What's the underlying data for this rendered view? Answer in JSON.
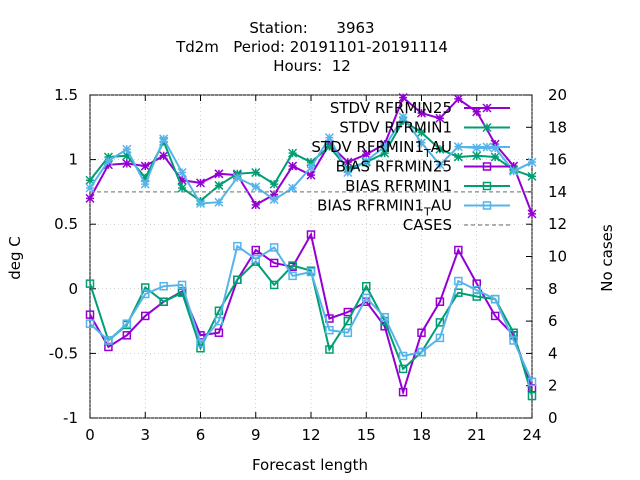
{
  "chart_data": {
    "type": "line",
    "title_lines": [
      "Station:      3963",
      "Td2m   Period: 20191101-20191114",
      "Hours:  12"
    ],
    "xlabel": "Forecast length",
    "ylabel": "deg C",
    "y2label": "No cases",
    "xlim": [
      0,
      24
    ],
    "ylim": [
      -1,
      1.5
    ],
    "y2lim": [
      0,
      20
    ],
    "xticks": [
      "0",
      "3",
      "6",
      "9",
      "12",
      "15",
      "18",
      "21",
      "24"
    ],
    "yticks": [
      "-1",
      "-0.5",
      "0",
      "0.5",
      "1",
      "1.5"
    ],
    "y2ticks": [
      "0",
      "2",
      "4",
      "6",
      "8",
      "10",
      "12",
      "14",
      "16",
      "18",
      "20"
    ],
    "legend_position": "top-right",
    "x": [
      0,
      1,
      2,
      3,
      4,
      5,
      6,
      7,
      8,
      9,
      10,
      11,
      12,
      13,
      14,
      15,
      16,
      17,
      18,
      19,
      20,
      21,
      22,
      23,
      24
    ],
    "series": [
      {
        "name": "STDV RFRMIN25",
        "color": "#9400d3",
        "marker": "star",
        "values": [
          0.7,
          0.96,
          0.97,
          0.95,
          1.03,
          0.84,
          0.82,
          0.89,
          0.88,
          0.65,
          0.73,
          0.95,
          0.88,
          1.12,
          0.98,
          1.04,
          1.12,
          1.48,
          1.36,
          1.32,
          1.47,
          1.37,
          1.12,
          0.95,
          0.58
        ]
      },
      {
        "name": "STDV RFRMIN1",
        "color": "#009e73",
        "marker": "star",
        "values": [
          0.84,
          1.02,
          1.03,
          0.86,
          1.14,
          0.78,
          0.68,
          0.8,
          0.89,
          0.9,
          0.81,
          1.05,
          0.98,
          1.1,
          0.93,
          0.98,
          1.05,
          1.3,
          1.21,
          1.08,
          1.02,
          1.03,
          1.02,
          0.92,
          0.87
        ]
      },
      {
        "name": "STDV RFRMIN1_TAU",
        "color": "#56b4e9",
        "marker": "star",
        "values": [
          0.78,
          0.99,
          1.08,
          0.81,
          1.16,
          0.9,
          0.66,
          0.67,
          0.86,
          0.79,
          0.69,
          0.78,
          0.94,
          1.17,
          0.9,
          0.99,
          1.1,
          1.33,
          1.13,
          0.96,
          1.1,
          1.09,
          1.09,
          0.91,
          0.98
        ]
      },
      {
        "name": "BIAS RFRMIN25",
        "color": "#9400d3",
        "marker": "square",
        "values": [
          -0.2,
          -0.45,
          -0.36,
          -0.21,
          -0.1,
          -0.02,
          -0.36,
          -0.34,
          0.07,
          0.3,
          0.2,
          0.17,
          0.42,
          -0.23,
          -0.18,
          -0.1,
          -0.29,
          -0.8,
          -0.34,
          -0.1,
          0.3,
          0.04,
          -0.21,
          -0.36,
          -0.77
        ]
      },
      {
        "name": "BIAS RFRMIN1",
        "color": "#009e73",
        "marker": "square",
        "values": [
          0.04,
          -0.4,
          -0.28,
          0.01,
          -0.1,
          -0.03,
          -0.46,
          -0.17,
          0.07,
          0.21,
          0.03,
          0.18,
          0.14,
          -0.47,
          -0.25,
          0.02,
          -0.25,
          -0.62,
          -0.49,
          -0.26,
          -0.03,
          -0.06,
          -0.08,
          -0.34,
          -0.83
        ]
      },
      {
        "name": "BIAS RFRMIN1_TAU",
        "color": "#56b4e9",
        "marker": "square",
        "values": [
          -0.27,
          -0.4,
          -0.27,
          -0.04,
          0.02,
          0.03,
          -0.42,
          -0.25,
          0.33,
          0.23,
          0.32,
          0.1,
          0.13,
          -0.32,
          -0.34,
          -0.07,
          -0.22,
          -0.52,
          -0.49,
          -0.38,
          0.06,
          -0.01,
          -0.08,
          -0.4,
          -0.72
        ]
      },
      {
        "name": "CASES",
        "color": "#888888",
        "dashed": true,
        "axis": "y2",
        "values": [
          14,
          14,
          14,
          14,
          14,
          14,
          14,
          14,
          14,
          14,
          14,
          14,
          14,
          14,
          14,
          14,
          14,
          14,
          14,
          14,
          14,
          14,
          14,
          14,
          14
        ]
      }
    ],
    "legend": [
      {
        "text": "STDV RFRMIN25",
        "color": "#9400d3",
        "marker": "star"
      },
      {
        "text": "STDV RFRMIN1",
        "color": "#009e73",
        "marker": "star"
      },
      {
        "text": "STDV RFRMIN1",
        "sub": "T",
        "tail": "AU",
        "color": "#56b4e9",
        "marker": "star"
      },
      {
        "text": "BIAS RFRMIN25",
        "color": "#9400d3",
        "marker": "square"
      },
      {
        "text": "BIAS RFRMIN1",
        "color": "#009e73",
        "marker": "square"
      },
      {
        "text": "BIAS RFRMIN1",
        "sub": "T",
        "tail": "AU",
        "color": "#56b4e9",
        "marker": "square"
      },
      {
        "text": "CASES",
        "color": "#888888",
        "dashed": true
      }
    ]
  }
}
